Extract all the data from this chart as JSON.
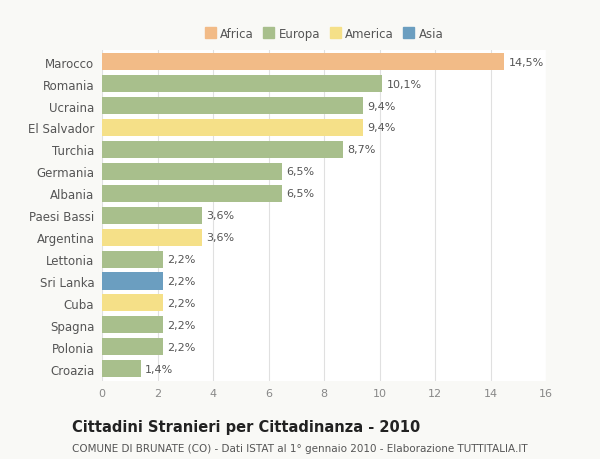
{
  "countries": [
    "Marocco",
    "Romania",
    "Ucraina",
    "El Salvador",
    "Turchia",
    "Germania",
    "Albania",
    "Paesi Bassi",
    "Argentina",
    "Lettonia",
    "Sri Lanka",
    "Cuba",
    "Spagna",
    "Polonia",
    "Croazia"
  ],
  "values": [
    14.5,
    10.1,
    9.4,
    9.4,
    8.7,
    6.5,
    6.5,
    3.6,
    3.6,
    2.2,
    2.2,
    2.2,
    2.2,
    2.2,
    1.4
  ],
  "labels": [
    "14,5%",
    "10,1%",
    "9,4%",
    "9,4%",
    "8,7%",
    "6,5%",
    "6,5%",
    "3,6%",
    "3,6%",
    "2,2%",
    "2,2%",
    "2,2%",
    "2,2%",
    "2,2%",
    "1,4%"
  ],
  "continents": [
    "Africa",
    "Europa",
    "Europa",
    "America",
    "Europa",
    "Europa",
    "Europa",
    "Europa",
    "America",
    "Europa",
    "Asia",
    "America",
    "Europa",
    "Europa",
    "Europa"
  ],
  "colors": {
    "Africa": "#F2BB87",
    "Europa": "#A8BF8C",
    "America": "#F5E088",
    "Asia": "#6B9EC0"
  },
  "legend_order": [
    "Africa",
    "Europa",
    "America",
    "Asia"
  ],
  "xlim": [
    0,
    16
  ],
  "xticks": [
    0,
    2,
    4,
    6,
    8,
    10,
    12,
    14,
    16
  ],
  "title": "Cittadini Stranieri per Cittadinanza - 2010",
  "subtitle": "COMUNE DI BRUNATE (CO) - Dati ISTAT al 1° gennaio 2010 - Elaborazione TUTTITALIA.IT",
  "title_fontsize": 10.5,
  "subtitle_fontsize": 7.5,
  "bar_height": 0.78,
  "background_color": "#f9f9f6",
  "plot_bg_color": "#ffffff",
  "grid_color": "#e0e0e0",
  "label_fontsize": 8,
  "ytick_fontsize": 8.5,
  "xtick_fontsize": 8
}
